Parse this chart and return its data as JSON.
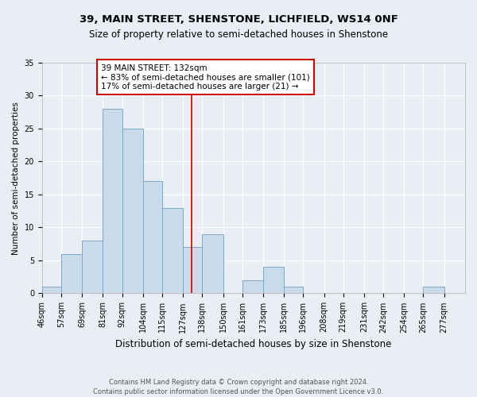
{
  "title1": "39, MAIN STREET, SHENSTONE, LICHFIELD, WS14 0NF",
  "title2": "Size of property relative to semi-detached houses in Shenstone",
  "xlabel": "Distribution of semi-detached houses by size in Shenstone",
  "ylabel": "Number of semi-detached properties",
  "footnote": "Contains HM Land Registry data © Crown copyright and database right 2024.\nContains public sector information licensed under the Open Government Licence v3.0.",
  "bin_labels": [
    "46sqm",
    "57sqm",
    "69sqm",
    "81sqm",
    "92sqm",
    "104sqm",
    "115sqm",
    "127sqm",
    "138sqm",
    "150sqm",
    "161sqm",
    "173sqm",
    "185sqm",
    "196sqm",
    "208sqm",
    "219sqm",
    "231sqm",
    "242sqm",
    "254sqm",
    "265sqm",
    "277sqm"
  ],
  "bin_edges": [
    46,
    57,
    69,
    81,
    92,
    104,
    115,
    127,
    138,
    150,
    161,
    173,
    185,
    196,
    208,
    219,
    231,
    242,
    254,
    265,
    277
  ],
  "counts": [
    1,
    6,
    8,
    28,
    25,
    17,
    13,
    7,
    9,
    0,
    2,
    4,
    1,
    0,
    0,
    0,
    0,
    0,
    0,
    1
  ],
  "property_size": 132,
  "bar_color": "#c9daea",
  "bar_edge_color": "#7aaac8",
  "vline_color": "#cc0000",
  "annotation_text": "39 MAIN STREET: 132sqm\n← 83% of semi-detached houses are smaller (101)\n17% of semi-detached houses are larger (21) →",
  "annotation_box_color": "#ffffff",
  "annotation_box_edge": "#cc0000",
  "ylim": [
    0,
    35
  ],
  "yticks": [
    0,
    5,
    10,
    15,
    20,
    25,
    30,
    35
  ],
  "background_color": "#e8eef4",
  "plot_background": "#e8eef4",
  "grid_color": "#ffffff",
  "title1_fontsize": 9.5,
  "title2_fontsize": 8.5,
  "xlabel_fontsize": 8.5,
  "ylabel_fontsize": 7.5,
  "tick_fontsize": 7.0,
  "footnote_fontsize": 6.0,
  "annot_fontsize": 7.5
}
